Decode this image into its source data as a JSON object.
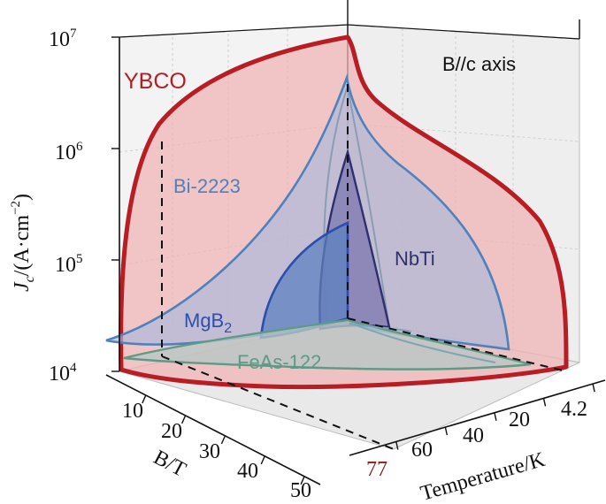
{
  "chart_data": {
    "type": "3d-surface",
    "annotation": "B//c axis",
    "axes": {
      "y": {
        "label_symbol": "J",
        "label_subscript": "c",
        "label_unit": "/(A·cm",
        "label_unit_sup": "−2",
        "label_unit_close": ")",
        "scale": "log",
        "ticks": [
          {
            "base": "10",
            "exp": "4",
            "value": 10000
          },
          {
            "base": "10",
            "exp": "5",
            "value": 100000
          },
          {
            "base": "10",
            "exp": "6",
            "value": 1000000
          },
          {
            "base": "10",
            "exp": "7",
            "value": 10000000
          }
        ]
      },
      "b": {
        "label": "B/T",
        "ticks": [
          "10",
          "20",
          "30",
          "40",
          "50"
        ]
      },
      "t": {
        "label": "Temperature/K",
        "ticks": [
          "4.2",
          "20",
          "40",
          "60"
        ],
        "marker": "77"
      }
    },
    "series": [
      {
        "name": "YBCO",
        "color": "#b81d24",
        "fill": "#f0b3b3"
      },
      {
        "name": "Bi-2223",
        "color": "#4c82bd",
        "fill": "#a9b9dc"
      },
      {
        "name": "NbTi",
        "color": "#2f2f6e",
        "fill": "#7d7ab0"
      },
      {
        "name": "MgB",
        "sub": "2",
        "color": "#2c4fae",
        "fill": "#6d8ec2"
      },
      {
        "name": "FeAs-122",
        "color": "#5f9a86",
        "fill": "#b8c7c4"
      }
    ]
  }
}
